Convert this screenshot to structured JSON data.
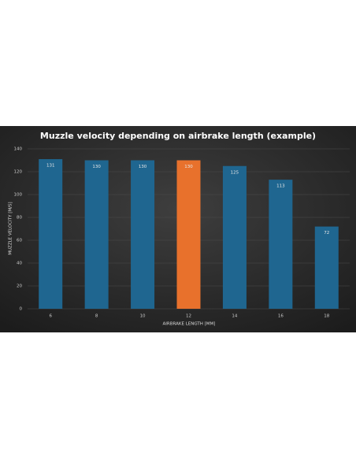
{
  "chart_data": {
    "type": "bar",
    "title": "Muzzle velocity depending on airbrake length (example)",
    "x_label": "AIRBRAKE LENGTH [MM]",
    "y_label": "MUZZLE VELOCITY [M/S]",
    "categories": [
      "6",
      "8",
      "10",
      "12",
      "14",
      "16",
      "18"
    ],
    "values": [
      131,
      130,
      130,
      130,
      125,
      113,
      72
    ],
    "colors": [
      "#1f6690",
      "#1f6690",
      "#1f6690",
      "#e8712c",
      "#1f6690",
      "#1f6690",
      "#1f6690"
    ],
    "ylim": [
      0,
      140
    ],
    "yticks": [
      0,
      20,
      40,
      60,
      80,
      100,
      120,
      140
    ],
    "grid": true
  }
}
